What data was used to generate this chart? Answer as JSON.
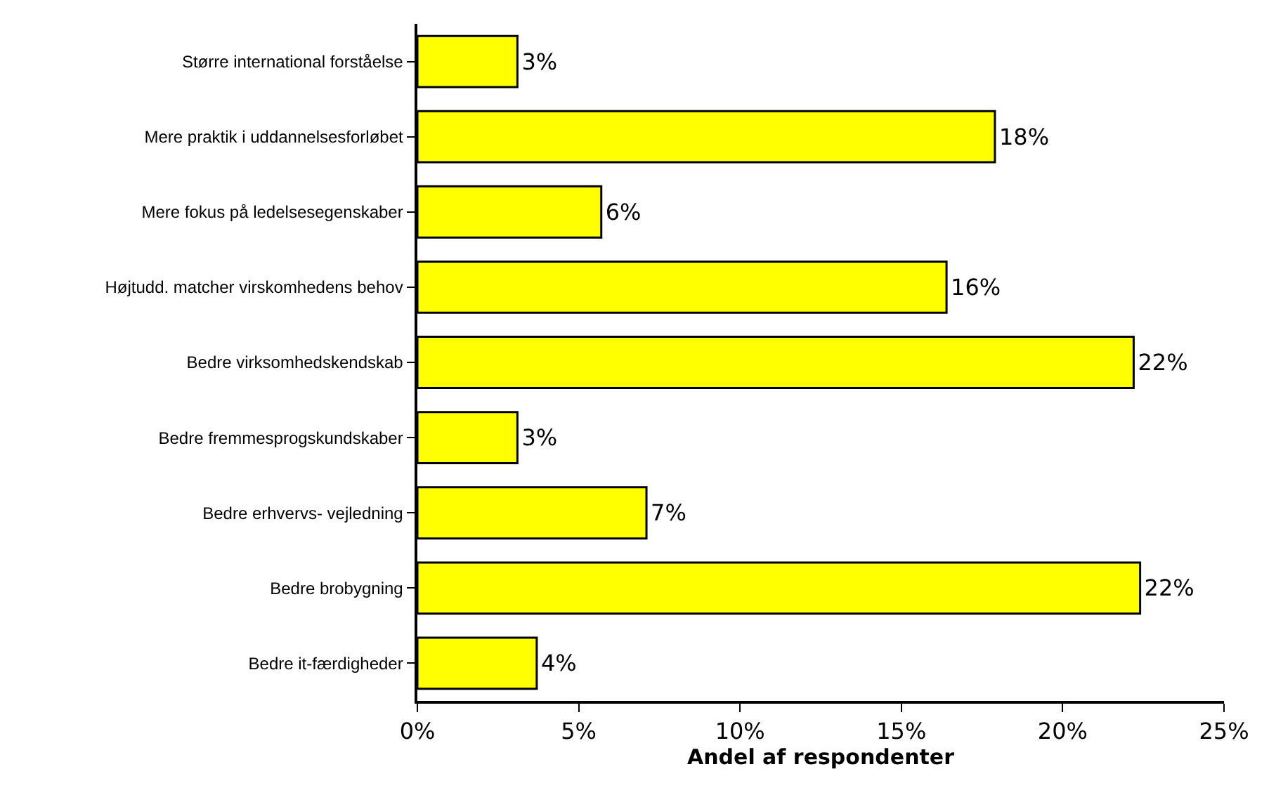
{
  "chart_data": {
    "type": "bar",
    "orientation": "horizontal",
    "xlabel": "Andel af respondenter",
    "categories": [
      "Større international forståelse",
      "Mere praktik i uddannelsesforløbet",
      "Mere fokus på ledelsesegenskaber",
      "Højtudd. matcher virskomhedens behov",
      "Bedre virksomhedskendskab",
      "Bedre fremmesprogskundskaber",
      "Bedre erhvervs- vejledning",
      "Bedre brobygning",
      "Bedre it-færdigheder"
    ],
    "values": [
      3.1,
      17.9,
      5.7,
      16.4,
      22.2,
      3.1,
      7.1,
      22.4,
      3.7
    ],
    "value_labels": [
      "3%",
      "18%",
      "6%",
      "16%",
      "22%",
      "3%",
      "7%",
      "22%",
      "4%"
    ],
    "color": "#ffff00",
    "xlim": [
      0,
      25
    ],
    "xticks": [
      {
        "value": 0,
        "label": "0%"
      },
      {
        "value": 5,
        "label": "5%"
      },
      {
        "value": 10,
        "label": "10%"
      },
      {
        "value": 15,
        "label": "15%"
      },
      {
        "value": 20,
        "label": "20%"
      },
      {
        "value": 25,
        "label": "25%"
      }
    ]
  }
}
